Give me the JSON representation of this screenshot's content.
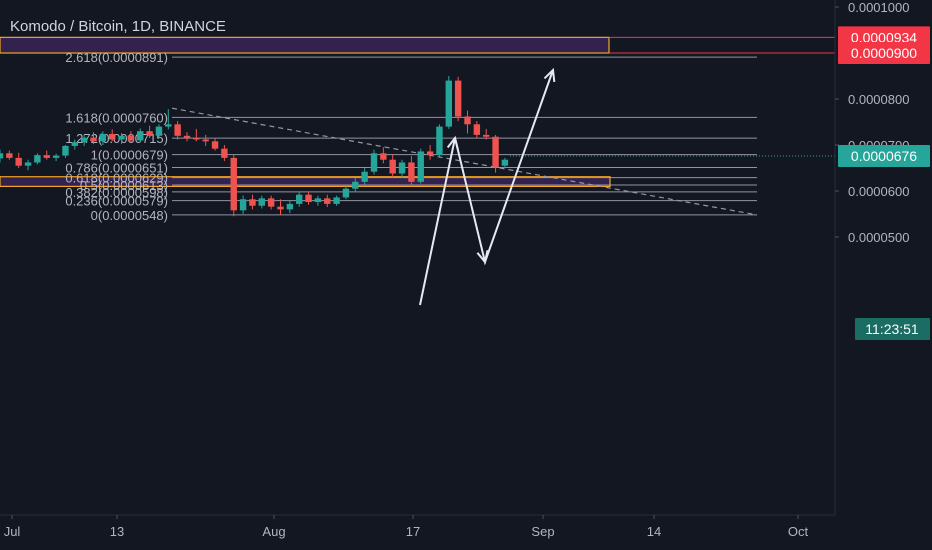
{
  "header": {
    "title": "Komodo / Bitcoin, 1D, BINANCE"
  },
  "colors": {
    "background": "#131722",
    "up": "#26a69a",
    "down": "#ef5350",
    "fib_line": "#b2b5be",
    "zone_fill": "#3b2456",
    "zone_border": "#f5a623",
    "axis_text": "#b2b5be",
    "red_label": "#f23645",
    "price_label": "#26a69a"
  },
  "chart_data": {
    "type": "candlestick",
    "title": "Komodo / Bitcoin, 1D, BINANCE",
    "x_ticks": [
      "Jul",
      "13",
      "Aug",
      "17",
      "Sep",
      "14",
      "Oct"
    ],
    "y_ticks": [
      "0.0001000",
      "0.0000800",
      "0.0000700",
      "0.0000600",
      "0.0000500"
    ],
    "ylim": [
      4.45e-05,
      0.000105
    ],
    "price_labels": [
      {
        "text": "0.0000934",
        "value": 9.34e-05,
        "style": "red"
      },
      {
        "text": "0.0000900",
        "value": 9e-05,
        "style": "red"
      },
      {
        "text": "0.0000676",
        "value": 6.76e-05,
        "style": "teal"
      },
      {
        "text": "11:23:51",
        "value": 6.62e-05,
        "style": "teal-dark"
      }
    ],
    "fib_levels": [
      {
        "label": "2.618(0.0000891)",
        "value": 8.91e-05
      },
      {
        "label": "1.618(0.0000760)",
        "value": 7.6e-05
      },
      {
        "label": "1.272(0.0000715)",
        "value": 7.15e-05
      },
      {
        "label": "1(0.0000679)",
        "value": 6.79e-05
      },
      {
        "label": "0.786(0.0000651)",
        "value": 6.51e-05
      },
      {
        "label": "0.618(0.0000629)",
        "value": 6.29e-05
      },
      {
        "label": "0.5(0.0000613)",
        "value": 6.13e-05
      },
      {
        "label": "0.382(0.0000598)",
        "value": 5.98e-05
      },
      {
        "label": "0.236(0.0000579)",
        "value": 5.79e-05
      },
      {
        "label": "0(0.0000548)",
        "value": 5.48e-05
      }
    ],
    "zones": [
      {
        "top": 9.34e-05,
        "bottom": 9e-05
      },
      {
        "top": 6.31e-05,
        "bottom": 6.1e-05
      }
    ],
    "candles": [
      {
        "o": 671,
        "h": 690,
        "l": 662,
        "c": 682
      },
      {
        "o": 682,
        "h": 688,
        "l": 668,
        "c": 672
      },
      {
        "o": 672,
        "h": 683,
        "l": 650,
        "c": 655
      },
      {
        "o": 655,
        "h": 668,
        "l": 645,
        "c": 662
      },
      {
        "o": 662,
        "h": 682,
        "l": 658,
        "c": 678
      },
      {
        "o": 678,
        "h": 688,
        "l": 668,
        "c": 672
      },
      {
        "o": 672,
        "h": 681,
        "l": 665,
        "c": 677
      },
      {
        "o": 677,
        "h": 700,
        "l": 672,
        "c": 698
      },
      {
        "o": 698,
        "h": 712,
        "l": 690,
        "c": 706
      },
      {
        "o": 706,
        "h": 722,
        "l": 698,
        "c": 716
      },
      {
        "o": 716,
        "h": 728,
        "l": 702,
        "c": 708
      },
      {
        "o": 708,
        "h": 730,
        "l": 700,
        "c": 724
      },
      {
        "o": 724,
        "h": 734,
        "l": 708,
        "c": 712
      },
      {
        "o": 712,
        "h": 726,
        "l": 702,
        "c": 720
      },
      {
        "o": 720,
        "h": 730,
        "l": 706,
        "c": 710
      },
      {
        "o": 710,
        "h": 736,
        "l": 706,
        "c": 730
      },
      {
        "o": 730,
        "h": 742,
        "l": 715,
        "c": 720
      },
      {
        "o": 720,
        "h": 745,
        "l": 714,
        "c": 740
      },
      {
        "o": 740,
        "h": 778,
        "l": 734,
        "c": 745
      },
      {
        "o": 745,
        "h": 752,
        "l": 712,
        "c": 720
      },
      {
        "o": 720,
        "h": 728,
        "l": 708,
        "c": 715
      },
      {
        "o": 715,
        "h": 735,
        "l": 708,
        "c": 712
      },
      {
        "o": 712,
        "h": 722,
        "l": 698,
        "c": 708
      },
      {
        "o": 708,
        "h": 715,
        "l": 688,
        "c": 692
      },
      {
        "o": 692,
        "h": 700,
        "l": 665,
        "c": 672
      },
      {
        "o": 672,
        "h": 678,
        "l": 545,
        "c": 558
      },
      {
        "o": 558,
        "h": 590,
        "l": 550,
        "c": 582
      },
      {
        "o": 582,
        "h": 592,
        "l": 560,
        "c": 568
      },
      {
        "o": 568,
        "h": 590,
        "l": 562,
        "c": 584
      },
      {
        "o": 584,
        "h": 590,
        "l": 560,
        "c": 566
      },
      {
        "o": 566,
        "h": 582,
        "l": 548,
        "c": 560
      },
      {
        "o": 560,
        "h": 578,
        "l": 552,
        "c": 572
      },
      {
        "o": 572,
        "h": 598,
        "l": 566,
        "c": 592
      },
      {
        "o": 592,
        "h": 598,
        "l": 570,
        "c": 576
      },
      {
        "o": 576,
        "h": 590,
        "l": 568,
        "c": 584
      },
      {
        "o": 584,
        "h": 592,
        "l": 565,
        "c": 572
      },
      {
        "o": 572,
        "h": 590,
        "l": 568,
        "c": 586
      },
      {
        "o": 586,
        "h": 612,
        "l": 582,
        "c": 605
      },
      {
        "o": 605,
        "h": 628,
        "l": 598,
        "c": 620
      },
      {
        "o": 620,
        "h": 650,
        "l": 614,
        "c": 642
      },
      {
        "o": 642,
        "h": 690,
        "l": 636,
        "c": 682
      },
      {
        "o": 682,
        "h": 695,
        "l": 660,
        "c": 668
      },
      {
        "o": 668,
        "h": 680,
        "l": 630,
        "c": 638
      },
      {
        "o": 638,
        "h": 668,
        "l": 630,
        "c": 662
      },
      {
        "o": 662,
        "h": 676,
        "l": 610,
        "c": 620
      },
      {
        "o": 620,
        "h": 692,
        "l": 616,
        "c": 686
      },
      {
        "o": 686,
        "h": 700,
        "l": 668,
        "c": 678
      },
      {
        "o": 678,
        "h": 745,
        "l": 672,
        "c": 740
      },
      {
        "o": 740,
        "h": 850,
        "l": 735,
        "c": 840
      },
      {
        "o": 840,
        "h": 848,
        "l": 752,
        "c": 762
      },
      {
        "o": 762,
        "h": 775,
        "l": 725,
        "c": 745
      },
      {
        "o": 745,
        "h": 752,
        "l": 715,
        "c": 722
      },
      {
        "o": 722,
        "h": 735,
        "l": 712,
        "c": 718
      },
      {
        "o": 718,
        "h": 722,
        "l": 640,
        "c": 652
      },
      {
        "o": 655,
        "h": 672,
        "l": 650,
        "c": 668
      }
    ],
    "fib_anchors": [
      {
        "label": "trend-line",
        "from": {
          "candle": 18,
          "value": 7.8e-05
        },
        "to": {
          "candle": 94,
          "value": 5.48e-05
        }
      }
    ],
    "arrows": [
      {
        "from": [
          6.15e-05,
          0
        ],
        "to": [
          8.5e-05,
          0
        ],
        "name": "up-arrow-1"
      }
    ]
  }
}
